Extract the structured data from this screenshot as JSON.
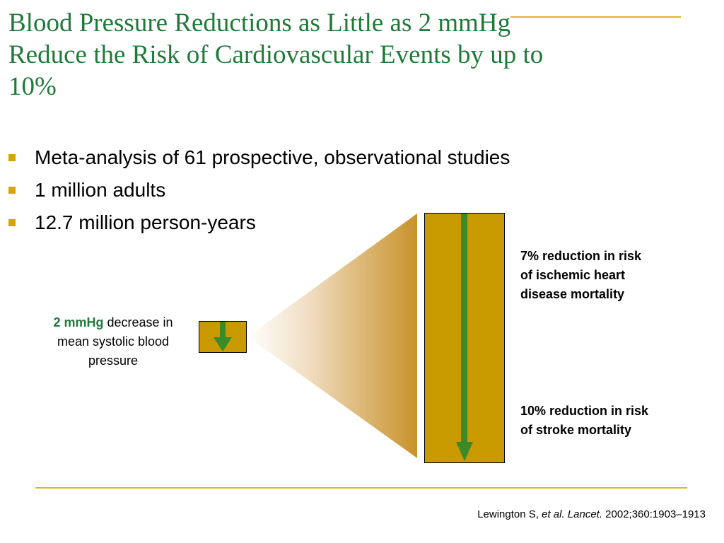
{
  "slide": {
    "title_line1": "Blood Pressure Reductions as Little as 2 mmHg",
    "title_line2": "Reduce the Risk of Cardiovascular Events by up to",
    "title_line3": "10%"
  },
  "bullets": [
    "Meta-analysis of 61 prospective, observational studies",
    "1 million adults",
    "12.7 million person-years"
  ],
  "diagram": {
    "input_label_emphasis": "2 mmHg",
    "input_label_rest_line1": " decrease in",
    "input_label_line2": "mean systolic blood",
    "input_label_line3": "pressure",
    "effect_ihd_line1": "7% reduction in risk",
    "effect_ihd_line2": "of ischemic heart",
    "effect_ihd_line3": "disease mortality",
    "effect_stroke_line1": "10% reduction in risk",
    "effect_stroke_line2": "of stroke mortality"
  },
  "citation": {
    "authors": "Lewington S, ",
    "etal": "et al. Lancet.",
    "details": " 2002;360:1903–1913"
  },
  "colors": {
    "title_green": "#1f7a3a",
    "accent_gold": "#e0b42a",
    "box_gold": "#c89a00",
    "arrow_green": "#3b8a2a"
  }
}
